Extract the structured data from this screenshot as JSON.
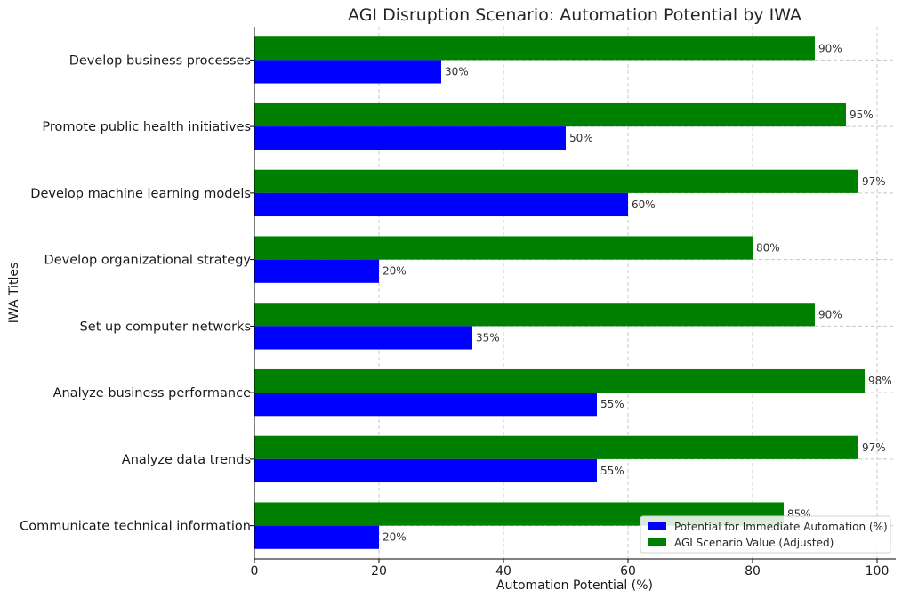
{
  "chart_data": {
    "type": "bar",
    "orientation": "horizontal",
    "title": "AGI Disruption Scenario: Automation Potential by IWA",
    "xlabel": "Automation Potential (%)",
    "ylabel": "IWA Titles",
    "xlim": [
      0,
      103
    ],
    "xticks": [
      0,
      20,
      40,
      60,
      80,
      100
    ],
    "grid": true,
    "legend_position": "lower-right",
    "categories": [
      "Develop business processes",
      "Promote public health initiatives",
      "Develop machine learning models",
      "Develop organizational strategy",
      "Set up computer networks",
      "Analyze business performance",
      "Analyze data trends",
      "Communicate technical information"
    ],
    "series": [
      {
        "name": "Potential for Immediate Automation (%)",
        "color": "#0000ff",
        "values": [
          30,
          50,
          60,
          20,
          35,
          55,
          55,
          20
        ],
        "labels": [
          "30%",
          "50%",
          "60%",
          "20%",
          "35%",
          "55%",
          "55%",
          "20%"
        ]
      },
      {
        "name": "AGI Scenario Value (Adjusted)",
        "color": "#008000",
        "values": [
          90,
          95,
          97,
          80,
          90,
          98,
          97,
          85
        ],
        "labels": [
          "90%",
          "95%",
          "97%",
          "80%",
          "90%",
          "98%",
          "97%",
          "85%"
        ]
      }
    ]
  }
}
